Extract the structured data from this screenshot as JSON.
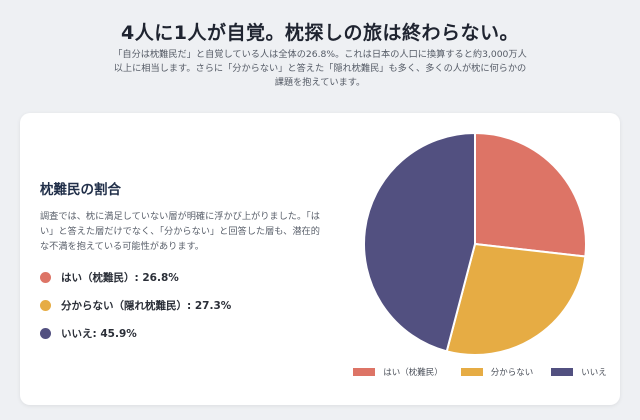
{
  "header": {
    "title": "4人に1人が自覚。枕探しの旅は終わらない。",
    "lead": "「自分は枕難民だ」と自覚している人は全体の26.8%。これは日本の人口に換算すると約3,000万人以上に相当します。さらに「分からない」と答えた「隠れ枕難民」も多く、多くの人が枕に何らかの課題を抱えています。"
  },
  "card": {
    "title": "枕難民の割合",
    "description": "調査では、枕に満足していない層が明確に浮かび上がりました。「はい」と答えた層だけでなく、「分からない」と回答した層も、潜在的な不満を抱えている可能性があります。",
    "stats": [
      {
        "label": "はい（枕難民）: 26.8%",
        "color": "#dd7466"
      },
      {
        "label": "分からない（隠れ枕難民）: 27.3%",
        "color": "#e6ac44"
      },
      {
        "label": "いいえ: 45.9%",
        "color": "#525080"
      }
    ]
  },
  "chart_data": {
    "type": "pie",
    "categories": [
      "はい（枕難民）",
      "分からない",
      "いいえ"
    ],
    "values": [
      26.8,
      27.3,
      45.9
    ],
    "colors": [
      "#dd7466",
      "#e6ac44",
      "#525080"
    ],
    "start_angle_deg": 0,
    "direction": "clockwise",
    "legend": "bottom"
  }
}
